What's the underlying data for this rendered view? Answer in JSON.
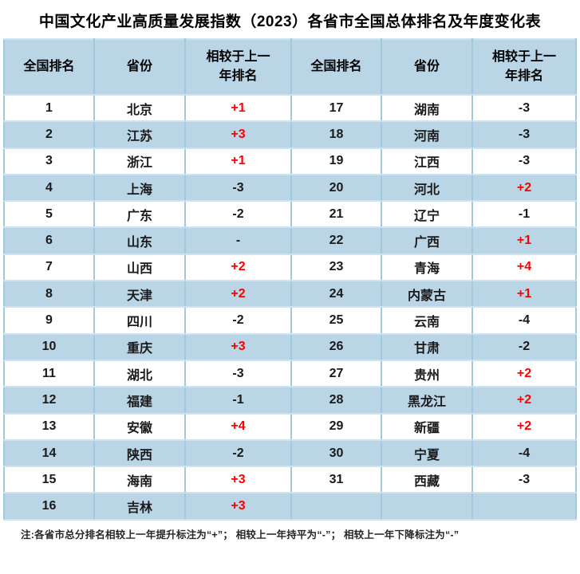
{
  "title": "中国文化产业高质量发展指数（2023）各省市全国总体排名及年度变化表",
  "header": {
    "cells": [
      "全国排名",
      "省份",
      "相较于上一\n年排名",
      "全国排名",
      "省份",
      "相较于上一\n年排名"
    ]
  },
  "note": "注:各省市总分排名相较上一年提升标注为“+”； 相较上一年持平为“-”； 相较上一年下降标注为“-”",
  "colors": {
    "row_alt_fill": "#b9d5e6",
    "header_fill": "#b9d5e6",
    "column_border": "#a3c8dc",
    "row_border": "#cee2ef",
    "bottom_border": "#595959",
    "positive_value": "#fe0000",
    "text": "#1a1a1a"
  },
  "chart_data": {
    "type": "table",
    "title": "中国文化产业高质量发展指数（2023）各省市全国总体排名及年度变化表",
    "columns": [
      "全国排名",
      "省份",
      "相较于上一年排名",
      "全国排名",
      "省份",
      "相较于上一年排名"
    ],
    "rows": [
      [
        "1",
        "北京",
        "+1",
        "17",
        "湖南",
        "-3"
      ],
      [
        "2",
        "江苏",
        "+3",
        "18",
        "河南",
        "-3"
      ],
      [
        "3",
        "浙江",
        "+1",
        "19",
        "江西",
        "-3"
      ],
      [
        "4",
        "上海",
        "-3",
        "20",
        "河北",
        "+2"
      ],
      [
        "5",
        "广东",
        "-2",
        "21",
        "辽宁",
        "-1"
      ],
      [
        "6",
        "山东",
        "-",
        "22",
        "广西",
        "+1"
      ],
      [
        "7",
        "山西",
        "+2",
        "23",
        "青海",
        "+4"
      ],
      [
        "8",
        "天津",
        "+2",
        "24",
        "内蒙古",
        "+1"
      ],
      [
        "9",
        "四川",
        "-2",
        "25",
        "云南",
        "-4"
      ],
      [
        "10",
        "重庆",
        "+3",
        "26",
        "甘肃",
        "-2"
      ],
      [
        "11",
        "湖北",
        "-3",
        "27",
        "贵州",
        "+2"
      ],
      [
        "12",
        "福建",
        "-1",
        "28",
        "黑龙江",
        "+2"
      ],
      [
        "13",
        "安徽",
        "+4",
        "29",
        "新疆",
        "+2"
      ],
      [
        "14",
        "陕西",
        "-2",
        "30",
        "宁夏",
        "-4"
      ],
      [
        "15",
        "海南",
        "+3",
        "31",
        "西藏",
        "-3"
      ],
      [
        "16",
        "吉林",
        "+3",
        "",
        "",
        ""
      ]
    ],
    "note": "注:各省市总分排名相较上一年提升标注为“+”； 相较上一年持平为“-”； 相较上一年下降标注为“-”",
    "legend": "positive changes rendered in red",
    "layout": "two side-by-side rank groups (1-16 left, 17-31 right), alternating row shading"
  }
}
